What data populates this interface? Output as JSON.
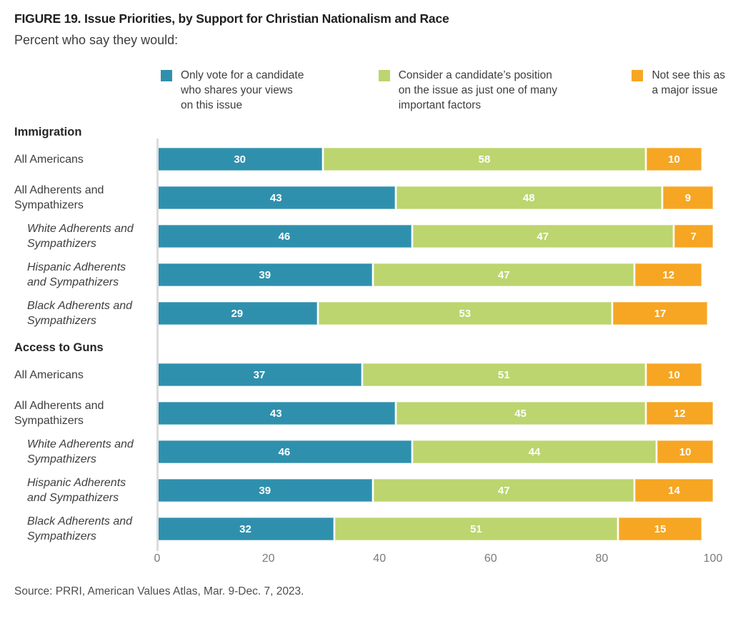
{
  "figure": {
    "title": "FIGURE 19. Issue Priorities, by Support for Christian Nationalism and Race",
    "subtitle": "Percent who say they would:",
    "source": "Source: PRRI, American Values Atlas, Mar. 9-Dec. 7, 2023."
  },
  "colors": {
    "only_vote": "#2F90AD",
    "consider": "#BCD56E",
    "not_major": "#F6A623",
    "axis_line": "#DCDCDC",
    "value_text": "#FFFFFF",
    "tick_text": "#7B7B7B"
  },
  "legend": [
    {
      "label": "Only vote for a candidate\nwho shares your views\non this issue"
    },
    {
      "label": "Consider a candidate’s position\non the issue as just one of many\nimportant factors"
    },
    {
      "label": "Not see this as\na major issue"
    }
  ],
  "chart_data": {
    "type": "bar",
    "orientation": "horizontal",
    "stacked": true,
    "title": "FIGURE 19. Issue Priorities, by Support for Christian Nationalism and Race",
    "subtitle": "Percent who say they would:",
    "xlabel": "",
    "ylabel": "",
    "xlim": [
      0,
      100
    ],
    "x_axis": {
      "min": 0,
      "max": 100,
      "ticks": [
        0,
        20,
        40,
        60,
        80,
        100
      ]
    },
    "legend_position": "top",
    "grid": false,
    "series_names": [
      "Only vote for a candidate who shares your views on this issue",
      "Consider a candidate’s position on the issue as just one of many important factors",
      "Not see this as a major issue"
    ],
    "series_colors": [
      "#2F90AD",
      "#BCD56E",
      "#F6A623"
    ],
    "sections": [
      {
        "heading": "Immigration",
        "rows": [
          {
            "label": "All Americans",
            "italic": false,
            "values": [
              30,
              58,
              10
            ]
          },
          {
            "label": "All Adherents and Sympathizers",
            "italic": false,
            "values": [
              43,
              48,
              9
            ]
          },
          {
            "label": "White Adherents and Sympathizers",
            "italic": true,
            "values": [
              46,
              47,
              7
            ]
          },
          {
            "label": "Hispanic Adherents and Sympathizers",
            "italic": true,
            "values": [
              39,
              47,
              12
            ]
          },
          {
            "label": "Black Adherents and Sympathizers",
            "italic": true,
            "values": [
              29,
              53,
              17
            ]
          }
        ]
      },
      {
        "heading": "Access to Guns",
        "rows": [
          {
            "label": "All Americans",
            "italic": false,
            "values": [
              37,
              51,
              10
            ]
          },
          {
            "label": "All Adherents and Sympathizers",
            "italic": false,
            "values": [
              43,
              45,
              12
            ]
          },
          {
            "label": "White Adherents and Sympathizers",
            "italic": true,
            "values": [
              46,
              44,
              10
            ]
          },
          {
            "label": "Hispanic Adherents and Sympathizers",
            "italic": true,
            "values": [
              39,
              47,
              14
            ]
          },
          {
            "label": "Black Adherents and Sympathizers",
            "italic": true,
            "values": [
              32,
              51,
              15
            ]
          }
        ]
      }
    ]
  }
}
